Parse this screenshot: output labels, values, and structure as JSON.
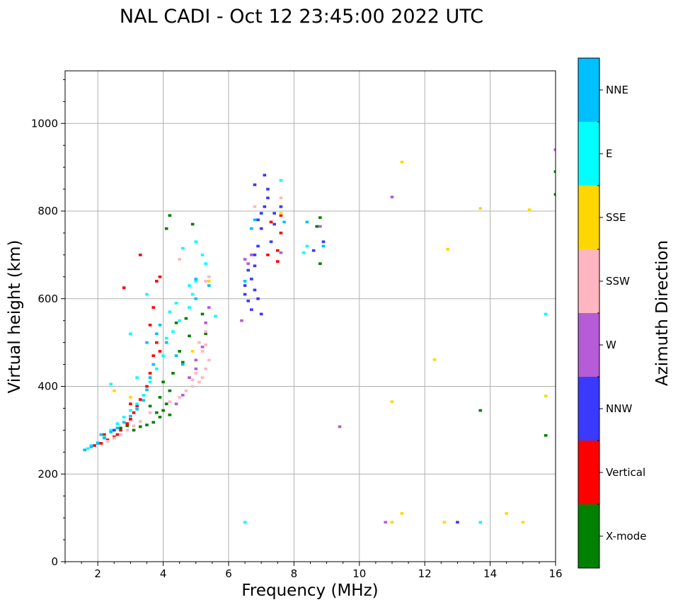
{
  "chart_data": {
    "type": "scatter",
    "title": "NAL CADI - Oct 12 23:45:00 2022 UTC",
    "xlabel": "Frequency (MHz)",
    "ylabel": "Virtual height (km)",
    "xlim": [
      1,
      16
    ],
    "ylim": [
      0,
      1120
    ],
    "xticks": [
      2,
      4,
      6,
      8,
      10,
      12,
      14,
      16
    ],
    "yticks": [
      0,
      200,
      400,
      600,
      800,
      1000
    ],
    "grid": true,
    "colorbar": {
      "label": "Azimuth Direction",
      "categories": [
        {
          "name": "X-mode",
          "color": "#008000"
        },
        {
          "name": "Vertical",
          "color": "#ff0000"
        },
        {
          "name": "NNW",
          "color": "#3a3aff"
        },
        {
          "name": "W",
          "color": "#b55cd6"
        },
        {
          "name": "SSW",
          "color": "#ffb6c1"
        },
        {
          "name": "SSE",
          "color": "#ffd700"
        },
        {
          "name": "E",
          "color": "#00ffff"
        },
        {
          "name": "NNE",
          "color": "#00bfff"
        }
      ]
    },
    "point_width_mhz": 0.1,
    "point_height_km": 6,
    "series": [
      {
        "name": "X-mode",
        "points": [
          [
            2.7,
            305
          ],
          [
            2.9,
            310
          ],
          [
            3.1,
            300
          ],
          [
            3.3,
            308
          ],
          [
            3.5,
            312
          ],
          [
            3.7,
            318
          ],
          [
            3.9,
            330
          ],
          [
            4.0,
            345
          ],
          [
            4.1,
            360
          ],
          [
            3.9,
            375
          ],
          [
            4.2,
            390
          ],
          [
            4.0,
            410
          ],
          [
            4.3,
            430
          ],
          [
            4.6,
            455
          ],
          [
            4.5,
            480
          ],
          [
            4.8,
            515
          ],
          [
            4.4,
            545
          ],
          [
            4.7,
            555
          ],
          [
            5.2,
            565
          ],
          [
            5.3,
            520
          ],
          [
            4.1,
            760
          ],
          [
            4.2,
            790
          ],
          [
            4.9,
            770
          ],
          [
            3.6,
            355
          ],
          [
            3.8,
            340
          ],
          [
            4.2,
            335
          ],
          [
            8.8,
            785
          ],
          [
            8.8,
            680
          ],
          [
            8.7,
            765
          ],
          [
            13.7,
            345
          ],
          [
            15.7,
            288
          ],
          [
            16.0,
            890
          ],
          [
            16.0,
            838
          ]
        ]
      },
      {
        "name": "Vertical",
        "points": [
          [
            1.9,
            265
          ],
          [
            2.1,
            270
          ],
          [
            2.3,
            278
          ],
          [
            2.5,
            285
          ],
          [
            2.6,
            290
          ],
          [
            2.7,
            300
          ],
          [
            2.9,
            315
          ],
          [
            3.0,
            325
          ],
          [
            3.1,
            340
          ],
          [
            3.2,
            355
          ],
          [
            3.3,
            370
          ],
          [
            3.4,
            380
          ],
          [
            3.5,
            400
          ],
          [
            3.6,
            430
          ],
          [
            3.7,
            470
          ],
          [
            3.8,
            500
          ],
          [
            3.6,
            540
          ],
          [
            3.7,
            580
          ],
          [
            3.8,
            640
          ],
          [
            3.9,
            650
          ],
          [
            2.8,
            625
          ],
          [
            3.3,
            700
          ],
          [
            3.9,
            480
          ],
          [
            7.2,
            700
          ],
          [
            7.5,
            710
          ],
          [
            7.6,
            750
          ],
          [
            7.6,
            790
          ],
          [
            7.5,
            685
          ],
          [
            7.3,
            775
          ],
          [
            2.2,
            290
          ],
          [
            3.0,
            360
          ]
        ]
      },
      {
        "name": "NNW",
        "points": [
          [
            6.5,
            630
          ],
          [
            6.5,
            610
          ],
          [
            6.6,
            595
          ],
          [
            6.7,
            645
          ],
          [
            6.8,
            620
          ],
          [
            6.9,
            600
          ],
          [
            6.6,
            665
          ],
          [
            6.8,
            700
          ],
          [
            6.9,
            720
          ],
          [
            7.0,
            760
          ],
          [
            6.9,
            780
          ],
          [
            7.1,
            810
          ],
          [
            7.2,
            830
          ],
          [
            7.2,
            850
          ],
          [
            6.8,
            860
          ],
          [
            7.1,
            882
          ],
          [
            7.0,
            565
          ],
          [
            6.7,
            575
          ],
          [
            7.4,
            795
          ],
          [
            7.4,
            770
          ],
          [
            7.6,
            810
          ],
          [
            7.3,
            730
          ],
          [
            8.6,
            710
          ],
          [
            8.9,
            730
          ],
          [
            13.0,
            90
          ],
          [
            6.8,
            675
          ],
          [
            7.0,
            795
          ],
          [
            2.5,
            300
          ]
        ]
      },
      {
        "name": "W",
        "points": [
          [
            6.5,
            690
          ],
          [
            6.6,
            680
          ],
          [
            6.7,
            700
          ],
          [
            6.4,
            550
          ],
          [
            5.0,
            440
          ],
          [
            5.0,
            460
          ],
          [
            4.8,
            420
          ],
          [
            4.6,
            380
          ],
          [
            4.4,
            360
          ],
          [
            5.2,
            490
          ],
          [
            5.3,
            545
          ],
          [
            5.4,
            580
          ],
          [
            8.8,
            765
          ],
          [
            11.0,
            832
          ],
          [
            9.4,
            308
          ],
          [
            10.8,
            90
          ],
          [
            16.0,
            940
          ],
          [
            7.6,
            705
          ]
        ]
      },
      {
        "name": "SSW",
        "points": [
          [
            2.3,
            275
          ],
          [
            2.5,
            282
          ],
          [
            2.7,
            290
          ],
          [
            2.9,
            300
          ],
          [
            3.1,
            310
          ],
          [
            3.3,
            320
          ],
          [
            3.6,
            340
          ],
          [
            4.2,
            365
          ],
          [
            4.5,
            375
          ],
          [
            4.7,
            390
          ],
          [
            4.9,
            400
          ],
          [
            5.1,
            410
          ],
          [
            5.2,
            420
          ],
          [
            5.3,
            440
          ],
          [
            5.4,
            460
          ],
          [
            5.2,
            480
          ],
          [
            5.3,
            495
          ],
          [
            5.1,
            500
          ],
          [
            5.0,
            430
          ],
          [
            4.9,
            415
          ],
          [
            5.3,
            525
          ],
          [
            5.4,
            650
          ],
          [
            5.3,
            640
          ],
          [
            7.6,
            830
          ],
          [
            4.5,
            690
          ],
          [
            6.8,
            810
          ]
        ]
      },
      {
        "name": "SSE",
        "points": [
          [
            4.9,
            480
          ],
          [
            5.4,
            640
          ],
          [
            11.3,
            912
          ],
          [
            12.7,
            713
          ],
          [
            13.7,
            806
          ],
          [
            15.2,
            803
          ],
          [
            12.3,
            461
          ],
          [
            11.0,
            365
          ],
          [
            15.7,
            378
          ],
          [
            11.3,
            110
          ],
          [
            14.5,
            110
          ],
          [
            11.0,
            90
          ],
          [
            12.6,
            90
          ],
          [
            15.0,
            90
          ],
          [
            7.6,
            795
          ],
          [
            3.0,
            375
          ],
          [
            2.5,
            390
          ]
        ]
      },
      {
        "name": "E",
        "points": [
          [
            1.7,
            258
          ],
          [
            1.8,
            265
          ],
          [
            2.0,
            272
          ],
          [
            2.2,
            285
          ],
          [
            2.4,
            300
          ],
          [
            2.6,
            315
          ],
          [
            2.8,
            330
          ],
          [
            3.0,
            345
          ],
          [
            3.2,
            360
          ],
          [
            3.4,
            380
          ],
          [
            3.6,
            410
          ],
          [
            3.8,
            440
          ],
          [
            4.0,
            470
          ],
          [
            4.1,
            510
          ],
          [
            4.3,
            525
          ],
          [
            4.5,
            550
          ],
          [
            4.8,
            580
          ],
          [
            4.9,
            610
          ],
          [
            5.0,
            640
          ],
          [
            5.2,
            700
          ],
          [
            5.0,
            730
          ],
          [
            5.3,
            680
          ],
          [
            4.6,
            715
          ],
          [
            4.8,
            630
          ],
          [
            4.2,
            570
          ],
          [
            4.4,
            590
          ],
          [
            3.5,
            610
          ],
          [
            5.6,
            560
          ],
          [
            6.5,
            90
          ],
          [
            13.7,
            90
          ],
          [
            15.7,
            565
          ],
          [
            7.6,
            870
          ],
          [
            8.3,
            705
          ],
          [
            8.4,
            720
          ],
          [
            2.4,
            405
          ],
          [
            3.0,
            520
          ],
          [
            3.2,
            420
          ]
        ]
      },
      {
        "name": "NNE",
        "points": [
          [
            1.6,
            255
          ],
          [
            1.8,
            262
          ],
          [
            2.0,
            270
          ],
          [
            2.2,
            282
          ],
          [
            2.4,
            296
          ],
          [
            2.6,
            305
          ],
          [
            2.8,
            318
          ],
          [
            3.0,
            332
          ],
          [
            3.2,
            348
          ],
          [
            3.4,
            368
          ],
          [
            3.5,
            392
          ],
          [
            3.6,
            420
          ],
          [
            3.7,
            450
          ],
          [
            3.5,
            500
          ],
          [
            3.8,
            520
          ],
          [
            3.9,
            540
          ],
          [
            4.1,
            500
          ],
          [
            4.4,
            470
          ],
          [
            4.6,
            450
          ],
          [
            5.0,
            600
          ],
          [
            5.0,
            645
          ],
          [
            5.4,
            630
          ],
          [
            7.7,
            775
          ],
          [
            8.9,
            720
          ],
          [
            8.4,
            775
          ],
          [
            6.5,
            640
          ],
          [
            6.7,
            760
          ],
          [
            6.8,
            780
          ],
          [
            2.1,
            290
          ]
        ]
      }
    ]
  }
}
